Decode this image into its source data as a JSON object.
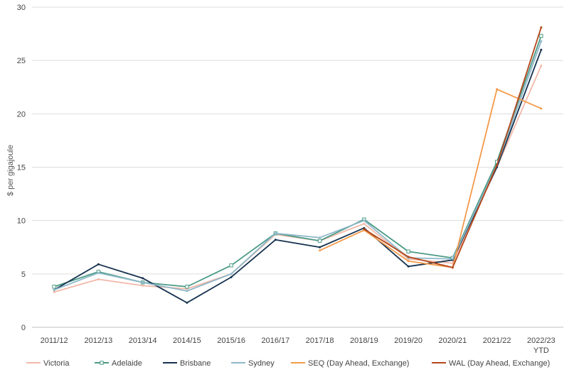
{
  "chart_data": {
    "type": "line",
    "ylabel": "$ per gigajoule",
    "ylim": [
      0,
      30
    ],
    "yticks": [
      0,
      5,
      10,
      15,
      20,
      25,
      30
    ],
    "grid": true,
    "legend_position": "bottom",
    "categories": [
      "2011/12",
      "2012/13",
      "2013/14",
      "2014/15",
      "2015/16",
      "2016/17",
      "2017/18",
      "2018/19",
      "2019/20",
      "2020/21",
      "2021/22",
      "2022/23\nYTD"
    ],
    "series": [
      {
        "name": "Victoria",
        "color": "#f2b8a8",
        "marker": false,
        "values": [
          3.3,
          4.5,
          3.9,
          3.6,
          5.0,
          8.7,
          8.1,
          9.7,
          6.4,
          6.0,
          15.0,
          24.5
        ]
      },
      {
        "name": "Adelaide",
        "color": "#4a9a86",
        "marker": true,
        "values": [
          3.8,
          5.2,
          4.2,
          3.8,
          5.8,
          8.8,
          8.1,
          10.1,
          7.1,
          6.5,
          15.5,
          27.3
        ]
      },
      {
        "name": "Brisbane",
        "color": "#16324f",
        "marker": false,
        "values": [
          3.5,
          5.9,
          4.6,
          2.3,
          4.7,
          8.2,
          7.5,
          9.3,
          5.7,
          6.3,
          15.0,
          26.0
        ]
      },
      {
        "name": "Sydney",
        "color": "#8fb8c9",
        "marker": false,
        "values": [
          3.5,
          5.1,
          4.2,
          3.4,
          5.0,
          8.8,
          8.4,
          10.0,
          6.5,
          6.4,
          15.2,
          26.8
        ]
      },
      {
        "name": "SEQ (Day Ahead, Exchange)",
        "color": "#f39a4a",
        "marker": false,
        "values": [
          null,
          null,
          null,
          null,
          null,
          null,
          7.2,
          9.1,
          6.2,
          5.6,
          22.3,
          20.5
        ]
      },
      {
        "name": "WAL (Day Ahead, Exchange)",
        "color": "#b5471b",
        "marker": false,
        "values": [
          null,
          null,
          null,
          null,
          null,
          null,
          null,
          9.2,
          6.6,
          5.6,
          15.2,
          28.1
        ]
      }
    ]
  }
}
